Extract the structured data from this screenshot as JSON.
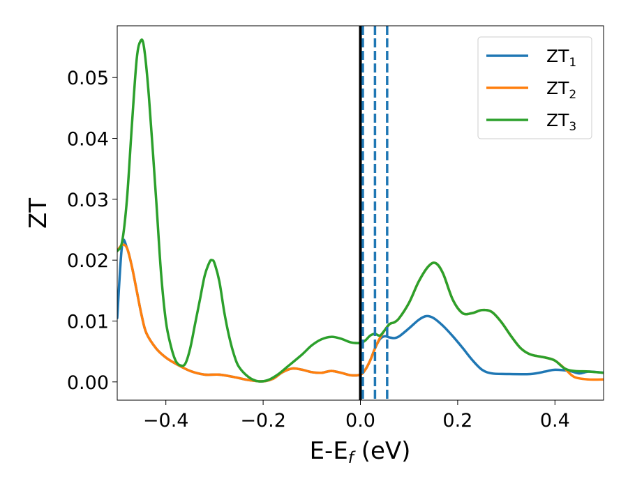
{
  "chart_data": {
    "type": "line",
    "xlabel": "E-E_f (eV)",
    "xlabel_parts": {
      "main": "E-E",
      "sub": "f",
      "rest": " (eV)"
    },
    "ylabel": "ZT",
    "xlim": [
      -0.5,
      0.5
    ],
    "ylim": [
      -0.003,
      0.0585
    ],
    "x_ticks": [
      -0.4,
      -0.2,
      0.0,
      0.2,
      0.4
    ],
    "x_tick_labels": [
      "−0.4",
      "−0.2",
      "0.0",
      "0.2",
      "0.4"
    ],
    "y_ticks": [
      0.0,
      0.01,
      0.02,
      0.03,
      0.04,
      0.05
    ],
    "y_tick_labels": [
      "0.00",
      "0.01",
      "0.02",
      "0.03",
      "0.04",
      "0.05"
    ],
    "grid": false,
    "legend_position": "top-right",
    "colors": {
      "zt1": "#1f77b4",
      "zt2": "#ff7f0e",
      "zt3": "#2ca02c",
      "vline_solid": "#000000",
      "vline_dashed": "#1f77b4"
    },
    "series": [
      {
        "name": "ZT1",
        "name_base": "ZT",
        "name_sub": "1",
        "color": "#1f77b4",
        "points": [
          [
            -0.5,
            0.0105
          ],
          [
            -0.49,
            0.0225
          ],
          [
            -0.48,
            0.022
          ],
          [
            -0.47,
            0.019
          ],
          [
            -0.46,
            0.015
          ],
          [
            -0.45,
            0.011
          ],
          [
            -0.44,
            0.008
          ],
          [
            -0.42,
            0.0055
          ],
          [
            -0.4,
            0.004
          ],
          [
            -0.38,
            0.003
          ],
          [
            -0.35,
            0.0018
          ],
          [
            -0.32,
            0.0012
          ],
          [
            -0.29,
            0.0012
          ],
          [
            -0.26,
            0.0008
          ],
          [
            -0.23,
            0.0003
          ],
          [
            -0.2,
            0.0001
          ],
          [
            -0.18,
            0.0005
          ],
          [
            -0.16,
            0.0016
          ],
          [
            -0.14,
            0.0022
          ],
          [
            -0.12,
            0.002
          ],
          [
            -0.1,
            0.0016
          ],
          [
            -0.08,
            0.0015
          ],
          [
            -0.06,
            0.0018
          ],
          [
            -0.04,
            0.0015
          ],
          [
            -0.02,
            0.0011
          ],
          [
            0.0,
            0.0012
          ],
          [
            0.01,
            0.002
          ],
          [
            0.02,
            0.0035
          ],
          [
            0.03,
            0.0055
          ],
          [
            0.04,
            0.007
          ],
          [
            0.05,
            0.0075
          ],
          [
            0.06,
            0.0073
          ],
          [
            0.07,
            0.0072
          ],
          [
            0.08,
            0.0075
          ],
          [
            0.1,
            0.0088
          ],
          [
            0.12,
            0.0102
          ],
          [
            0.135,
            0.0108
          ],
          [
            0.15,
            0.0105
          ],
          [
            0.17,
            0.0092
          ],
          [
            0.19,
            0.0075
          ],
          [
            0.21,
            0.0056
          ],
          [
            0.23,
            0.0036
          ],
          [
            0.25,
            0.002
          ],
          [
            0.27,
            0.0014
          ],
          [
            0.3,
            0.0013
          ],
          [
            0.35,
            0.0013
          ],
          [
            0.38,
            0.0017
          ],
          [
            0.4,
            0.002
          ],
          [
            0.43,
            0.0018
          ],
          [
            0.45,
            0.0014
          ],
          [
            0.47,
            0.0017
          ],
          [
            0.5,
            0.0015
          ]
        ]
      },
      {
        "name": "ZT2",
        "name_base": "ZT",
        "name_sub": "2",
        "color": "#ff7f0e",
        "points": [
          [
            -0.5,
            0.0215
          ],
          [
            -0.49,
            0.0225
          ],
          [
            -0.48,
            0.022
          ],
          [
            -0.47,
            0.019
          ],
          [
            -0.46,
            0.015
          ],
          [
            -0.45,
            0.011
          ],
          [
            -0.44,
            0.008
          ],
          [
            -0.42,
            0.0055
          ],
          [
            -0.4,
            0.004
          ],
          [
            -0.38,
            0.003
          ],
          [
            -0.35,
            0.0018
          ],
          [
            -0.32,
            0.0012
          ],
          [
            -0.29,
            0.0012
          ],
          [
            -0.26,
            0.0008
          ],
          [
            -0.23,
            0.0003
          ],
          [
            -0.2,
            0.0001
          ],
          [
            -0.18,
            0.0005
          ],
          [
            -0.16,
            0.0016
          ],
          [
            -0.14,
            0.0022
          ],
          [
            -0.12,
            0.002
          ],
          [
            -0.1,
            0.0016
          ],
          [
            -0.08,
            0.0015
          ],
          [
            -0.06,
            0.0018
          ],
          [
            -0.04,
            0.0015
          ],
          [
            -0.02,
            0.0011
          ],
          [
            0.0,
            0.0012
          ],
          [
            0.01,
            0.002
          ],
          [
            0.02,
            0.0035
          ],
          [
            0.03,
            0.0055
          ],
          [
            0.04,
            0.0072
          ],
          [
            0.05,
            0.0085
          ],
          [
            0.06,
            0.0095
          ],
          [
            0.07,
            0.0098
          ],
          [
            0.08,
            0.0105
          ],
          [
            0.1,
            0.013
          ],
          [
            0.12,
            0.0165
          ],
          [
            0.14,
            0.019
          ],
          [
            0.155,
            0.0195
          ],
          [
            0.17,
            0.0178
          ],
          [
            0.19,
            0.0135
          ],
          [
            0.21,
            0.0113
          ],
          [
            0.23,
            0.0113
          ],
          [
            0.25,
            0.0118
          ],
          [
            0.27,
            0.0115
          ],
          [
            0.29,
            0.0098
          ],
          [
            0.31,
            0.0075
          ],
          [
            0.33,
            0.0055
          ],
          [
            0.35,
            0.0045
          ],
          [
            0.38,
            0.004
          ],
          [
            0.4,
            0.0035
          ],
          [
            0.42,
            0.0022
          ],
          [
            0.44,
            0.0008
          ],
          [
            0.47,
            0.0004
          ],
          [
            0.5,
            0.0004
          ]
        ]
      },
      {
        "name": "ZT3",
        "name_base": "ZT",
        "name_sub": "3",
        "color": "#2ca02c",
        "points": [
          [
            -0.5,
            0.0215
          ],
          [
            -0.49,
            0.023
          ],
          [
            -0.48,
            0.03
          ],
          [
            -0.47,
            0.042
          ],
          [
            -0.46,
            0.053
          ],
          [
            -0.452,
            0.056
          ],
          [
            -0.445,
            0.055
          ],
          [
            -0.435,
            0.047
          ],
          [
            -0.42,
            0.03
          ],
          [
            -0.41,
            0.018
          ],
          [
            -0.4,
            0.01
          ],
          [
            -0.39,
            0.006
          ],
          [
            -0.38,
            0.0035
          ],
          [
            -0.37,
            0.0027
          ],
          [
            -0.36,
            0.003
          ],
          [
            -0.35,
            0.0055
          ],
          [
            -0.34,
            0.0095
          ],
          [
            -0.33,
            0.0135
          ],
          [
            -0.32,
            0.0175
          ],
          [
            -0.31,
            0.0197
          ],
          [
            -0.305,
            0.02
          ],
          [
            -0.3,
            0.0195
          ],
          [
            -0.29,
            0.0165
          ],
          [
            -0.28,
            0.0115
          ],
          [
            -0.27,
            0.0075
          ],
          [
            -0.26,
            0.0045
          ],
          [
            -0.25,
            0.0025
          ],
          [
            -0.23,
            0.0008
          ],
          [
            -0.21,
            0.0001
          ],
          [
            -0.19,
            0.0003
          ],
          [
            -0.17,
            0.0012
          ],
          [
            -0.15,
            0.0025
          ],
          [
            -0.12,
            0.0045
          ],
          [
            -0.1,
            0.006
          ],
          [
            -0.08,
            0.007
          ],
          [
            -0.06,
            0.0074
          ],
          [
            -0.04,
            0.0071
          ],
          [
            -0.02,
            0.0065
          ],
          [
            0.0,
            0.0064
          ],
          [
            0.01,
            0.0068
          ],
          [
            0.02,
            0.0076
          ],
          [
            0.03,
            0.0079
          ],
          [
            0.04,
            0.0076
          ],
          [
            0.05,
            0.0085
          ],
          [
            0.06,
            0.0095
          ],
          [
            0.07,
            0.0098
          ],
          [
            0.08,
            0.0105
          ],
          [
            0.1,
            0.013
          ],
          [
            0.12,
            0.0165
          ],
          [
            0.14,
            0.019
          ],
          [
            0.155,
            0.0195
          ],
          [
            0.17,
            0.0178
          ],
          [
            0.19,
            0.0135
          ],
          [
            0.21,
            0.0113
          ],
          [
            0.23,
            0.0113
          ],
          [
            0.25,
            0.0118
          ],
          [
            0.27,
            0.0115
          ],
          [
            0.29,
            0.0098
          ],
          [
            0.31,
            0.0075
          ],
          [
            0.33,
            0.0055
          ],
          [
            0.35,
            0.0045
          ],
          [
            0.38,
            0.004
          ],
          [
            0.4,
            0.0035
          ],
          [
            0.42,
            0.0022
          ],
          [
            0.44,
            0.0018
          ],
          [
            0.47,
            0.0017
          ],
          [
            0.5,
            0.0015
          ]
        ]
      }
    ],
    "vertical_lines": [
      {
        "x": 0.0,
        "style": "solid",
        "color": "#000000"
      },
      {
        "x": 0.005,
        "style": "dashed",
        "color": "#1f77b4"
      },
      {
        "x": 0.03,
        "style": "dashed",
        "color": "#1f77b4"
      },
      {
        "x": 0.055,
        "style": "dashed",
        "color": "#1f77b4"
      }
    ]
  }
}
